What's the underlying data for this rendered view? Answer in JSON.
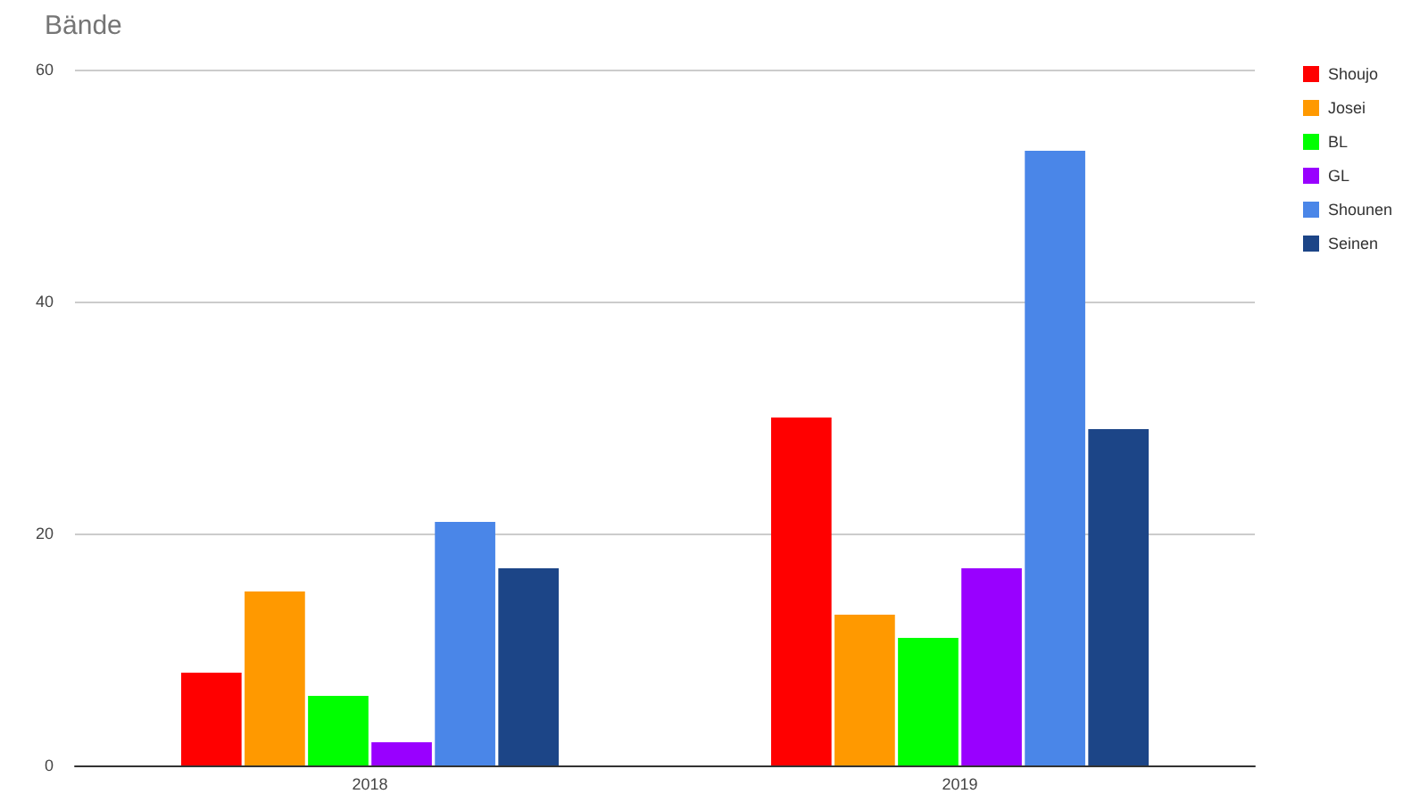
{
  "chart_data": {
    "type": "bar",
    "title": "Bände",
    "categories": [
      "2018",
      "2019"
    ],
    "series": [
      {
        "name": "Shoujo",
        "color": "#ff0000",
        "values": [
          8,
          30
        ]
      },
      {
        "name": "Josei",
        "color": "#ff9900",
        "values": [
          15,
          13
        ]
      },
      {
        "name": "BL",
        "color": "#00ff00",
        "values": [
          6,
          11
        ]
      },
      {
        "name": "GL",
        "color": "#9900ff",
        "values": [
          2,
          17
        ]
      },
      {
        "name": "Shounen",
        "color": "#4a86e8",
        "values": [
          21,
          53
        ]
      },
      {
        "name": "Seinen",
        "color": "#1c4587",
        "values": [
          17,
          29
        ]
      }
    ],
    "ylim": [
      0,
      60
    ],
    "yticks": [
      0,
      20,
      40,
      60
    ],
    "grid": "y",
    "legend": "right"
  }
}
